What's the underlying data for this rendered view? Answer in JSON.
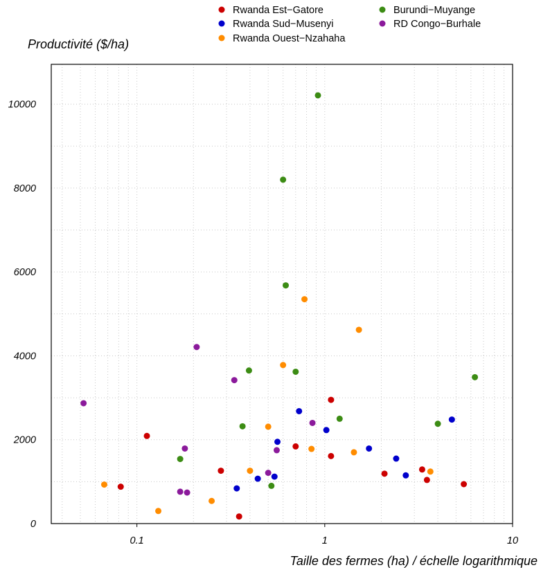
{
  "chart_data": {
    "type": "scatter",
    "xlabel": "Taille des fermes (ha) / échelle logarithmique",
    "ylabel": "Productivité ($/ha)",
    "x_scale": "log",
    "xlim": [
      0.035,
      10
    ],
    "ylim": [
      0,
      10950
    ],
    "x_ticks": [
      {
        "value": 0.1,
        "label": "0.1"
      },
      {
        "value": 1,
        "label": "1"
      },
      {
        "value": 10,
        "label": "10"
      }
    ],
    "y_ticks": [
      {
        "value": 0,
        "label": "0"
      },
      {
        "value": 2000,
        "label": "2000"
      },
      {
        "value": 4000,
        "label": "4000"
      },
      {
        "value": 6000,
        "label": "6000"
      },
      {
        "value": 8000,
        "label": "8000"
      },
      {
        "value": 10000,
        "label": "10000"
      }
    ],
    "grid": true,
    "legend_position": "top",
    "series": [
      {
        "name": "Rwanda Est−Gatore",
        "color": "#cc0000",
        "points": [
          {
            "x": 0.082,
            "y": 880
          },
          {
            "x": 0.113,
            "y": 2090
          },
          {
            "x": 0.28,
            "y": 1260
          },
          {
            "x": 0.35,
            "y": 170
          },
          {
            "x": 0.7,
            "y": 1840
          },
          {
            "x": 1.08,
            "y": 2950
          },
          {
            "x": 1.08,
            "y": 1610
          },
          {
            "x": 2.08,
            "y": 1190
          },
          {
            "x": 3.3,
            "y": 1290
          },
          {
            "x": 3.5,
            "y": 1040
          },
          {
            "x": 5.5,
            "y": 940
          }
        ]
      },
      {
        "name": "Rwanda Sud−Musenyi",
        "color": "#0000cc",
        "points": [
          {
            "x": 0.34,
            "y": 840
          },
          {
            "x": 0.44,
            "y": 1070
          },
          {
            "x": 0.54,
            "y": 1120
          },
          {
            "x": 0.56,
            "y": 1950
          },
          {
            "x": 0.73,
            "y": 2680
          },
          {
            "x": 1.02,
            "y": 2230
          },
          {
            "x": 1.72,
            "y": 1790
          },
          {
            "x": 2.4,
            "y": 1550
          },
          {
            "x": 2.7,
            "y": 1150
          },
          {
            "x": 4.75,
            "y": 2480
          }
        ]
      },
      {
        "name": "Rwanda Ouest−Nzahaha",
        "color": "#ff8c00",
        "points": [
          {
            "x": 0.067,
            "y": 930
          },
          {
            "x": 0.13,
            "y": 300
          },
          {
            "x": 0.25,
            "y": 540
          },
          {
            "x": 0.4,
            "y": 1260
          },
          {
            "x": 0.5,
            "y": 2310
          },
          {
            "x": 0.6,
            "y": 3780
          },
          {
            "x": 0.78,
            "y": 5350
          },
          {
            "x": 0.85,
            "y": 1780
          },
          {
            "x": 1.43,
            "y": 1700
          },
          {
            "x": 1.52,
            "y": 4620
          },
          {
            "x": 3.65,
            "y": 1240
          }
        ]
      },
      {
        "name": "Burundi−Muyange",
        "color": "#3c8c14",
        "points": [
          {
            "x": 0.17,
            "y": 1540
          },
          {
            "x": 0.365,
            "y": 2320
          },
          {
            "x": 0.395,
            "y": 3650
          },
          {
            "x": 0.52,
            "y": 900
          },
          {
            "x": 0.6,
            "y": 8200
          },
          {
            "x": 0.62,
            "y": 5680
          },
          {
            "x": 0.7,
            "y": 3620
          },
          {
            "x": 0.92,
            "y": 10210
          },
          {
            "x": 1.2,
            "y": 2500
          },
          {
            "x": 4.0,
            "y": 2380
          },
          {
            "x": 6.3,
            "y": 3490
          }
        ]
      },
      {
        "name": "RD Congo−Burhale",
        "color": "#8b1a9b",
        "points": [
          {
            "x": 0.052,
            "y": 2870
          },
          {
            "x": 0.17,
            "y": 760
          },
          {
            "x": 0.18,
            "y": 1790
          },
          {
            "x": 0.185,
            "y": 740
          },
          {
            "x": 0.208,
            "y": 4210
          },
          {
            "x": 0.33,
            "y": 3420
          },
          {
            "x": 0.5,
            "y": 1210
          },
          {
            "x": 0.555,
            "y": 1750
          },
          {
            "x": 0.86,
            "y": 2400
          }
        ]
      }
    ]
  }
}
